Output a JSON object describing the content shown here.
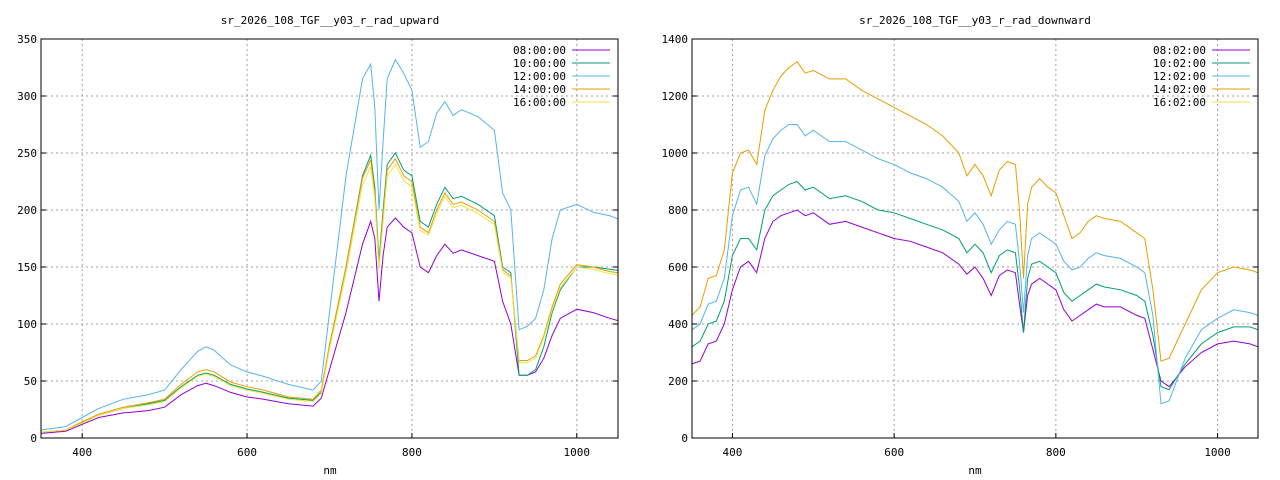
{
  "chart_data": [
    {
      "type": "line",
      "title": "sr_2026_108_TGF__y03_r_rad_upward",
      "xlabel": "nm",
      "ylabel": "",
      "xlim": [
        350,
        1050
      ],
      "ylim": [
        0,
        350
      ],
      "xticks": [
        400,
        600,
        800,
        1000
      ],
      "yticks": [
        0,
        50,
        100,
        150,
        200,
        250,
        300,
        350
      ],
      "grid": true,
      "legend": "top-right",
      "series": [
        {
          "name": "08:00:00",
          "color": "#9400d3",
          "x": [
            350,
            380,
            400,
            420,
            450,
            480,
            500,
            520,
            540,
            550,
            560,
            580,
            600,
            620,
            650,
            680,
            690,
            700,
            720,
            740,
            750,
            755,
            760,
            765,
            770,
            780,
            790,
            800,
            810,
            820,
            830,
            840,
            850,
            860,
            880,
            900,
            910,
            920,
            930,
            940,
            950,
            960,
            970,
            980,
            1000,
            1020,
            1040,
            1050
          ],
          "y": [
            4,
            6,
            12,
            18,
            22,
            24,
            27,
            38,
            46,
            48,
            46,
            40,
            36,
            34,
            30,
            28,
            35,
            60,
            110,
            170,
            190,
            175,
            120,
            160,
            185,
            193,
            185,
            180,
            150,
            145,
            160,
            170,
            162,
            165,
            160,
            155,
            120,
            100,
            55,
            55,
            58,
            70,
            90,
            105,
            113,
            110,
            105,
            103
          ]
        },
        {
          "name": "10:00:00",
          "color": "#009e73",
          "x": [
            350,
            380,
            400,
            420,
            450,
            480,
            500,
            520,
            540,
            550,
            560,
            580,
            600,
            620,
            650,
            680,
            690,
            700,
            720,
            740,
            750,
            755,
            760,
            765,
            770,
            780,
            790,
            800,
            810,
            820,
            830,
            840,
            850,
            860,
            880,
            900,
            910,
            920,
            930,
            940,
            950,
            960,
            970,
            980,
            1000,
            1020,
            1040,
            1050
          ],
          "y": [
            5,
            7,
            14,
            20,
            26,
            30,
            33,
            45,
            55,
            57,
            55,
            47,
            43,
            40,
            35,
            33,
            40,
            80,
            150,
            230,
            248,
            220,
            155,
            200,
            240,
            250,
            235,
            230,
            190,
            185,
            205,
            220,
            210,
            212,
            205,
            195,
            150,
            145,
            55,
            55,
            60,
            80,
            110,
            130,
            150,
            150,
            148,
            147
          ]
        },
        {
          "name": "12:00:00",
          "color": "#56b4e9",
          "x": [
            350,
            380,
            400,
            420,
            450,
            480,
            500,
            520,
            540,
            550,
            560,
            580,
            600,
            620,
            650,
            680,
            690,
            700,
            720,
            740,
            750,
            755,
            760,
            765,
            770,
            780,
            790,
            800,
            810,
            820,
            830,
            840,
            850,
            860,
            880,
            900,
            910,
            920,
            930,
            940,
            950,
            960,
            970,
            980,
            1000,
            1020,
            1040,
            1050
          ],
          "y": [
            7,
            10,
            18,
            26,
            34,
            38,
            42,
            60,
            76,
            80,
            77,
            64,
            58,
            54,
            47,
            42,
            50,
            110,
            230,
            315,
            328,
            290,
            200,
            260,
            315,
            332,
            320,
            305,
            255,
            260,
            285,
            295,
            283,
            288,
            282,
            270,
            215,
            200,
            95,
            98,
            105,
            130,
            175,
            200,
            205,
            198,
            195,
            192
          ]
        },
        {
          "name": "14:00:00",
          "color": "#e69f00",
          "x": [
            350,
            380,
            400,
            420,
            450,
            480,
            500,
            520,
            540,
            550,
            560,
            580,
            600,
            620,
            650,
            680,
            690,
            700,
            720,
            740,
            750,
            755,
            760,
            765,
            770,
            780,
            790,
            800,
            810,
            820,
            830,
            840,
            850,
            860,
            880,
            900,
            910,
            920,
            930,
            940,
            950,
            960,
            970,
            980,
            1000,
            1020,
            1040,
            1050
          ],
          "y": [
            5,
            7,
            14,
            21,
            27,
            31,
            34,
            47,
            58,
            60,
            58,
            49,
            45,
            42,
            36,
            34,
            42,
            82,
            150,
            228,
            244,
            215,
            150,
            195,
            235,
            245,
            230,
            225,
            185,
            180,
            200,
            215,
            205,
            207,
            200,
            190,
            148,
            142,
            68,
            68,
            72,
            90,
            115,
            135,
            152,
            150,
            146,
            145
          ]
        },
        {
          "name": "16:00:00",
          "color": "#f0e442",
          "x": [
            350,
            380,
            400,
            420,
            450,
            480,
            500,
            520,
            540,
            550,
            560,
            580,
            600,
            620,
            650,
            680,
            690,
            700,
            720,
            740,
            750,
            755,
            760,
            765,
            770,
            780,
            790,
            800,
            810,
            820,
            830,
            840,
            850,
            860,
            880,
            900,
            910,
            920,
            930,
            940,
            950,
            960,
            970,
            980,
            1000,
            1020,
            1040,
            1050
          ],
          "y": [
            5,
            7,
            13,
            20,
            26,
            29,
            32,
            44,
            54,
            56,
            54,
            46,
            42,
            39,
            34,
            32,
            39,
            78,
            145,
            222,
            238,
            210,
            148,
            190,
            230,
            240,
            226,
            220,
            182,
            178,
            197,
            212,
            202,
            204,
            197,
            187,
            146,
            140,
            66,
            66,
            70,
            88,
            112,
            132,
            150,
            148,
            144,
            143
          ]
        }
      ]
    },
    {
      "type": "line",
      "title": "sr_2026_108_TGF__y03_r_rad_downward",
      "xlabel": "nm",
      "ylabel": "",
      "xlim": [
        350,
        1050
      ],
      "ylim": [
        0,
        1400
      ],
      "xticks": [
        400,
        600,
        800,
        1000
      ],
      "yticks": [
        0,
        200,
        400,
        600,
        800,
        1000,
        1200,
        1400
      ],
      "grid": true,
      "legend": "top-right",
      "series": [
        {
          "name": "08:02:00",
          "color": "#9400d3",
          "x": [
            350,
            360,
            370,
            380,
            390,
            400,
            410,
            420,
            430,
            440,
            450,
            460,
            470,
            480,
            490,
            500,
            520,
            540,
            560,
            580,
            600,
            620,
            640,
            660,
            680,
            690,
            700,
            710,
            720,
            730,
            740,
            750,
            755,
            760,
            765,
            770,
            780,
            790,
            800,
            810,
            820,
            830,
            840,
            850,
            860,
            880,
            900,
            910,
            920,
            930,
            940,
            960,
            980,
            1000,
            1020,
            1040,
            1050
          ],
          "y": [
            260,
            270,
            330,
            340,
            400,
            520,
            600,
            620,
            580,
            700,
            760,
            780,
            790,
            800,
            780,
            790,
            750,
            760,
            740,
            720,
            700,
            690,
            670,
            650,
            610,
            575,
            600,
            560,
            500,
            570,
            590,
            580,
            470,
            370,
            500,
            540,
            560,
            540,
            520,
            450,
            410,
            430,
            450,
            470,
            460,
            460,
            430,
            420,
            310,
            200,
            180,
            250,
            300,
            330,
            340,
            330,
            320
          ]
        },
        {
          "name": "10:02:00",
          "color": "#009e73",
          "x": [
            350,
            360,
            370,
            380,
            390,
            400,
            410,
            420,
            430,
            440,
            450,
            460,
            470,
            480,
            490,
            500,
            520,
            540,
            560,
            580,
            600,
            620,
            640,
            660,
            680,
            690,
            700,
            710,
            720,
            730,
            740,
            750,
            755,
            760,
            765,
            770,
            780,
            790,
            800,
            810,
            820,
            830,
            840,
            850,
            860,
            880,
            900,
            910,
            920,
            930,
            940,
            960,
            980,
            1000,
            1020,
            1040,
            1050
          ],
          "y": [
            320,
            340,
            400,
            410,
            480,
            640,
            700,
            700,
            660,
            800,
            850,
            870,
            890,
            900,
            870,
            880,
            840,
            850,
            830,
            800,
            790,
            770,
            750,
            730,
            700,
            650,
            680,
            650,
            580,
            640,
            660,
            650,
            530,
            370,
            560,
            610,
            620,
            600,
            580,
            510,
            480,
            500,
            520,
            540,
            530,
            520,
            500,
            480,
            360,
            180,
            170,
            260,
            330,
            370,
            390,
            390,
            380
          ]
        },
        {
          "name": "12:02:00",
          "color": "#56b4e9",
          "x": [
            350,
            360,
            370,
            380,
            390,
            400,
            410,
            420,
            430,
            440,
            450,
            460,
            470,
            480,
            490,
            500,
            520,
            540,
            560,
            580,
            600,
            620,
            640,
            660,
            680,
            690,
            700,
            710,
            720,
            730,
            740,
            750,
            755,
            760,
            765,
            770,
            780,
            790,
            800,
            810,
            820,
            830,
            840,
            850,
            860,
            880,
            900,
            910,
            920,
            930,
            940,
            960,
            980,
            1000,
            1020,
            1040,
            1050
          ],
          "y": [
            380,
            400,
            470,
            480,
            560,
            780,
            870,
            880,
            820,
            990,
            1050,
            1080,
            1100,
            1100,
            1060,
            1080,
            1040,
            1040,
            1010,
            980,
            960,
            930,
            910,
            880,
            830,
            760,
            790,
            750,
            680,
            730,
            760,
            750,
            620,
            440,
            640,
            700,
            720,
            700,
            680,
            620,
            590,
            600,
            630,
            650,
            640,
            630,
            600,
            580,
            430,
            120,
            130,
            280,
            380,
            420,
            450,
            440,
            430
          ]
        },
        {
          "name": "14:02:00",
          "color": "#e69f00",
          "x": [
            350,
            360,
            370,
            380,
            390,
            400,
            410,
            420,
            430,
            440,
            450,
            460,
            470,
            480,
            490,
            500,
            520,
            540,
            560,
            580,
            600,
            620,
            640,
            660,
            680,
            690,
            700,
            710,
            720,
            730,
            740,
            750,
            755,
            760,
            765,
            770,
            780,
            790,
            800,
            810,
            820,
            830,
            840,
            850,
            860,
            880,
            900,
            910,
            920,
            930,
            940,
            960,
            980,
            1000,
            1020,
            1040,
            1050
          ],
          "y": [
            430,
            460,
            560,
            570,
            660,
            930,
            1000,
            1010,
            960,
            1150,
            1220,
            1270,
            1300,
            1320,
            1280,
            1290,
            1260,
            1260,
            1220,
            1190,
            1160,
            1130,
            1100,
            1060,
            1000,
            920,
            960,
            920,
            850,
            940,
            970,
            960,
            800,
            560,
            820,
            880,
            910,
            880,
            860,
            780,
            700,
            720,
            760,
            780,
            770,
            760,
            720,
            700,
            520,
            270,
            280,
            400,
            520,
            580,
            600,
            590,
            580
          ]
        },
        {
          "name": "16:02:00",
          "color": "#f0e442",
          "x": [],
          "y": []
        }
      ]
    }
  ]
}
